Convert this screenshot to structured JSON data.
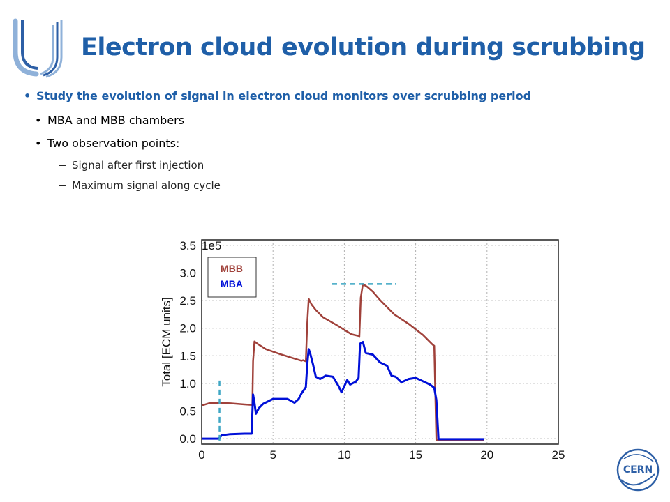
{
  "slide": {
    "title": "Electron cloud evolution during scrubbing",
    "bullets": [
      {
        "level": 1,
        "text": "Study the evolution of signal in electron cloud monitors over scrubbing period"
      },
      {
        "level": 2,
        "text": "MBA and MBB chambers"
      },
      {
        "level": 2,
        "text": "Two observation points:"
      },
      {
        "level": 3,
        "text": "Signal after first injection"
      },
      {
        "level": 3,
        "text": "Maximum signal along cycle"
      }
    ],
    "bullet_markers": {
      "level1": "•",
      "level2": "•",
      "level3": "−"
    },
    "logos": {
      "left": "university-logo-icon",
      "right": "cern-logo-icon",
      "right_text": "CERN"
    },
    "colors": {
      "title": "#1f5fa8",
      "level1_text": "#1f5fa8",
      "mbb": "#a0413a",
      "mba": "#0010d8",
      "marker": "#3fa7c4"
    }
  },
  "chart_data": {
    "type": "line",
    "ylabel": "Total [ECM units]",
    "xlabel": "",
    "offset_label": "1e5",
    "xlim": [
      0,
      25
    ],
    "ylim": [
      -0.1,
      3.6
    ],
    "xticks": [
      "0",
      "5",
      "10",
      "15",
      "20",
      "25"
    ],
    "xtick_values": [
      0,
      5,
      10,
      15,
      20,
      25
    ],
    "yticks": [
      "0.0",
      "0.5",
      "1.0",
      "1.5",
      "2.0",
      "2.5",
      "3.0",
      "3.5"
    ],
    "ytick_values": [
      0,
      0.5,
      1.0,
      1.5,
      2.0,
      2.5,
      3.0,
      3.5
    ],
    "grid": true,
    "legend": {
      "position": "top-left",
      "entries": [
        "MBB",
        "MBA"
      ]
    },
    "series": [
      {
        "name": "MBB",
        "color": "#a0413a",
        "x": [
          0.0,
          0.5,
          1.0,
          2.0,
          3.0,
          3.55,
          3.6,
          3.7,
          3.9,
          4.5,
          5.5,
          6.5,
          7.0,
          7.1,
          7.3,
          7.4,
          7.5,
          7.7,
          8.0,
          8.5,
          9.5,
          10.5,
          11.0,
          11.05,
          11.15,
          11.3,
          11.6,
          12.0,
          12.5,
          13.5,
          14.5,
          15.5,
          16.2,
          16.3,
          16.45,
          16.6,
          17.5,
          18.5,
          19.5,
          19.8
        ],
        "y": [
          0.6,
          0.64,
          0.65,
          0.64,
          0.62,
          0.61,
          1.4,
          1.76,
          1.72,
          1.62,
          1.53,
          1.45,
          1.41,
          1.42,
          1.4,
          2.1,
          2.53,
          2.43,
          2.33,
          2.2,
          2.05,
          1.89,
          1.86,
          1.84,
          2.55,
          2.8,
          2.75,
          2.66,
          2.51,
          2.25,
          2.08,
          1.88,
          1.7,
          1.68,
          -0.02,
          -0.02,
          -0.02,
          -0.02,
          -0.02,
          -0.02
        ],
        "values_scale": "1e5"
      },
      {
        "name": "MBA",
        "color": "#0010d8",
        "x": [
          0.0,
          1.2,
          1.4,
          2.0,
          3.0,
          3.5,
          3.6,
          3.7,
          3.8,
          4.0,
          4.3,
          5.0,
          6.0,
          6.5,
          6.8,
          7.0,
          7.3,
          7.4,
          7.5,
          7.6,
          7.8,
          8.0,
          8.3,
          8.7,
          9.2,
          9.6,
          9.8,
          10.0,
          10.2,
          10.4,
          10.8,
          11.0,
          11.1,
          11.3,
          11.5,
          12.0,
          12.5,
          13.0,
          13.3,
          13.6,
          14.0,
          14.5,
          15.0,
          15.5,
          16.0,
          16.3,
          16.45,
          16.6,
          17.5,
          18.5,
          19.5,
          19.8
        ],
        "y": [
          0.0,
          0.0,
          0.06,
          0.08,
          0.09,
          0.09,
          0.8,
          0.65,
          0.45,
          0.55,
          0.63,
          0.72,
          0.72,
          0.65,
          0.72,
          0.82,
          0.93,
          1.35,
          1.62,
          1.55,
          1.35,
          1.12,
          1.08,
          1.14,
          1.12,
          0.95,
          0.84,
          0.95,
          1.06,
          0.98,
          1.03,
          1.1,
          1.72,
          1.75,
          1.55,
          1.52,
          1.38,
          1.32,
          1.14,
          1.12,
          1.02,
          1.08,
          1.1,
          1.04,
          0.98,
          0.92,
          0.7,
          -0.01,
          -0.01,
          -0.01,
          -0.01,
          -0.01
        ],
        "values_scale": "1e5"
      }
    ],
    "annotations": [
      {
        "type": "dashed-vline",
        "label": "Signal after first injection",
        "x": 1.25,
        "y_range": [
          -0.1,
          1.05
        ],
        "color": "#3fa7c4"
      },
      {
        "type": "dashed-hline",
        "label": "Maximum signal along cycle",
        "y": 2.8,
        "x_range": [
          9.1,
          13.6
        ],
        "color": "#3fa7c4"
      }
    ]
  }
}
